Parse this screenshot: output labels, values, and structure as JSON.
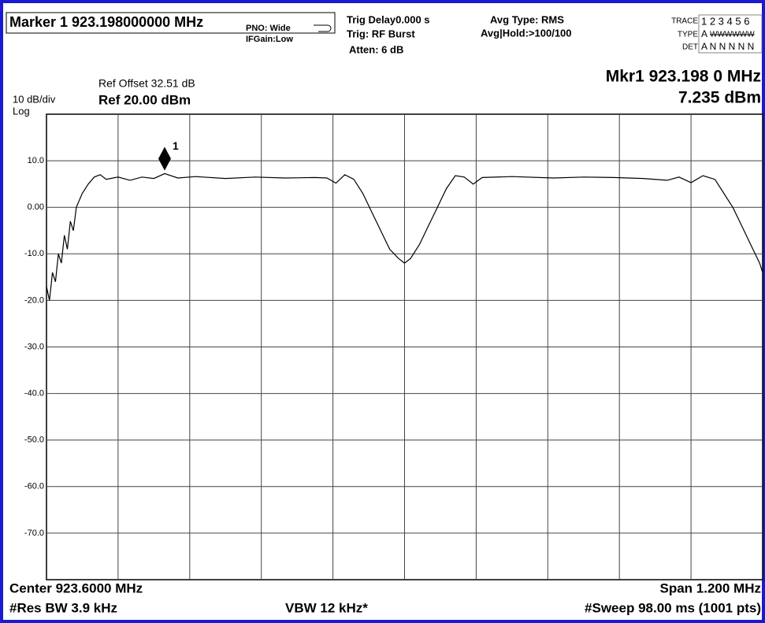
{
  "header": {
    "marker_title": "Marker 1 923.198000000 MHz",
    "pno": "PNO: Wide",
    "ifgain": "IFGain:Low",
    "trig_delay": "Trig Delay0.000 s",
    "trig": "Trig: RF Burst",
    "atten": "Atten: 6 dB",
    "avg_type": "Avg Type: RMS",
    "avg_hold": "Avg|Hold:>100/100",
    "trace_label": "TRACE",
    "trace_values": "1 2 3 4 5 6",
    "type_label": "TYPE",
    "type_a": "A",
    "type_values": "WWWWWW",
    "det_label": "DET",
    "det_values": "A N N N N N",
    "ref_offset": "Ref Offset 32.51 dB",
    "scale": "10 dB/div",
    "ref_level": "Ref 20.00 dBm",
    "log": "Log",
    "mkr_freq": "Mkr1 923.198 0 MHz",
    "mkr_level": "7.235 dBm",
    "center": "Center 923.6000 MHz",
    "span": "Span 1.200 MHz",
    "res_bw": "#Res BW 3.9 kHz",
    "vbw": "VBW 12 kHz*",
    "sweep": "#Sweep  98.00 ms (1001 pts)"
  },
  "chart_data": {
    "type": "line",
    "color": "#000000",
    "xlim": [
      923.0,
      924.2
    ],
    "ylim": [
      -80,
      20
    ],
    "yticks": [
      {
        "value": 10,
        "label": "10.0"
      },
      {
        "value": 0,
        "label": "0.00"
      },
      {
        "value": -10,
        "label": "-10.0"
      },
      {
        "value": -20,
        "label": "-20.0"
      },
      {
        "value": -30,
        "label": "-30.0"
      },
      {
        "value": -40,
        "label": "-40.0"
      },
      {
        "value": -50,
        "label": "-50.0"
      },
      {
        "value": -60,
        "label": "-60.0"
      },
      {
        "value": -70,
        "label": "-70.0"
      }
    ],
    "grid": true,
    "x": [
      923.0,
      923.005,
      923.01,
      923.015,
      923.02,
      923.025,
      923.03,
      923.035,
      923.04,
      923.045,
      923.05,
      923.06,
      923.07,
      923.08,
      923.09,
      923.1,
      923.12,
      923.14,
      923.16,
      923.18,
      923.198,
      923.22,
      923.25,
      923.3,
      923.35,
      923.4,
      923.45,
      923.47,
      923.485,
      923.5,
      923.515,
      923.53,
      923.545,
      923.56,
      923.575,
      923.59,
      923.6,
      923.61,
      923.625,
      923.64,
      923.655,
      923.67,
      923.685,
      923.7,
      923.715,
      923.73,
      923.78,
      923.85,
      923.9,
      923.95,
      924.0,
      924.04,
      924.06,
      924.08,
      924.1,
      924.12,
      924.135,
      924.15,
      924.165,
      924.18,
      924.195,
      924.2
    ],
    "values": [
      -17,
      -20,
      -14,
      -16,
      -10,
      -12,
      -6,
      -9,
      -3,
      -5,
      0,
      3,
      5,
      6.5,
      7,
      6,
      6.5,
      5.8,
      6.5,
      6.2,
      7.235,
      6.3,
      6.6,
      6.2,
      6.5,
      6.3,
      6.4,
      6.3,
      5.2,
      7,
      6,
      3,
      -1,
      -5,
      -9,
      -11,
      -12,
      -11,
      -8,
      -4,
      0,
      4,
      6.8,
      6.5,
      5,
      6.4,
      6.6,
      6.3,
      6.5,
      6.4,
      6.2,
      5.8,
      6.5,
      5.3,
      6.8,
      6,
      3,
      0,
      -4,
      -8,
      -12,
      -14
    ],
    "marker": {
      "x": 923.198,
      "y": 7.235,
      "label": "1"
    }
  }
}
